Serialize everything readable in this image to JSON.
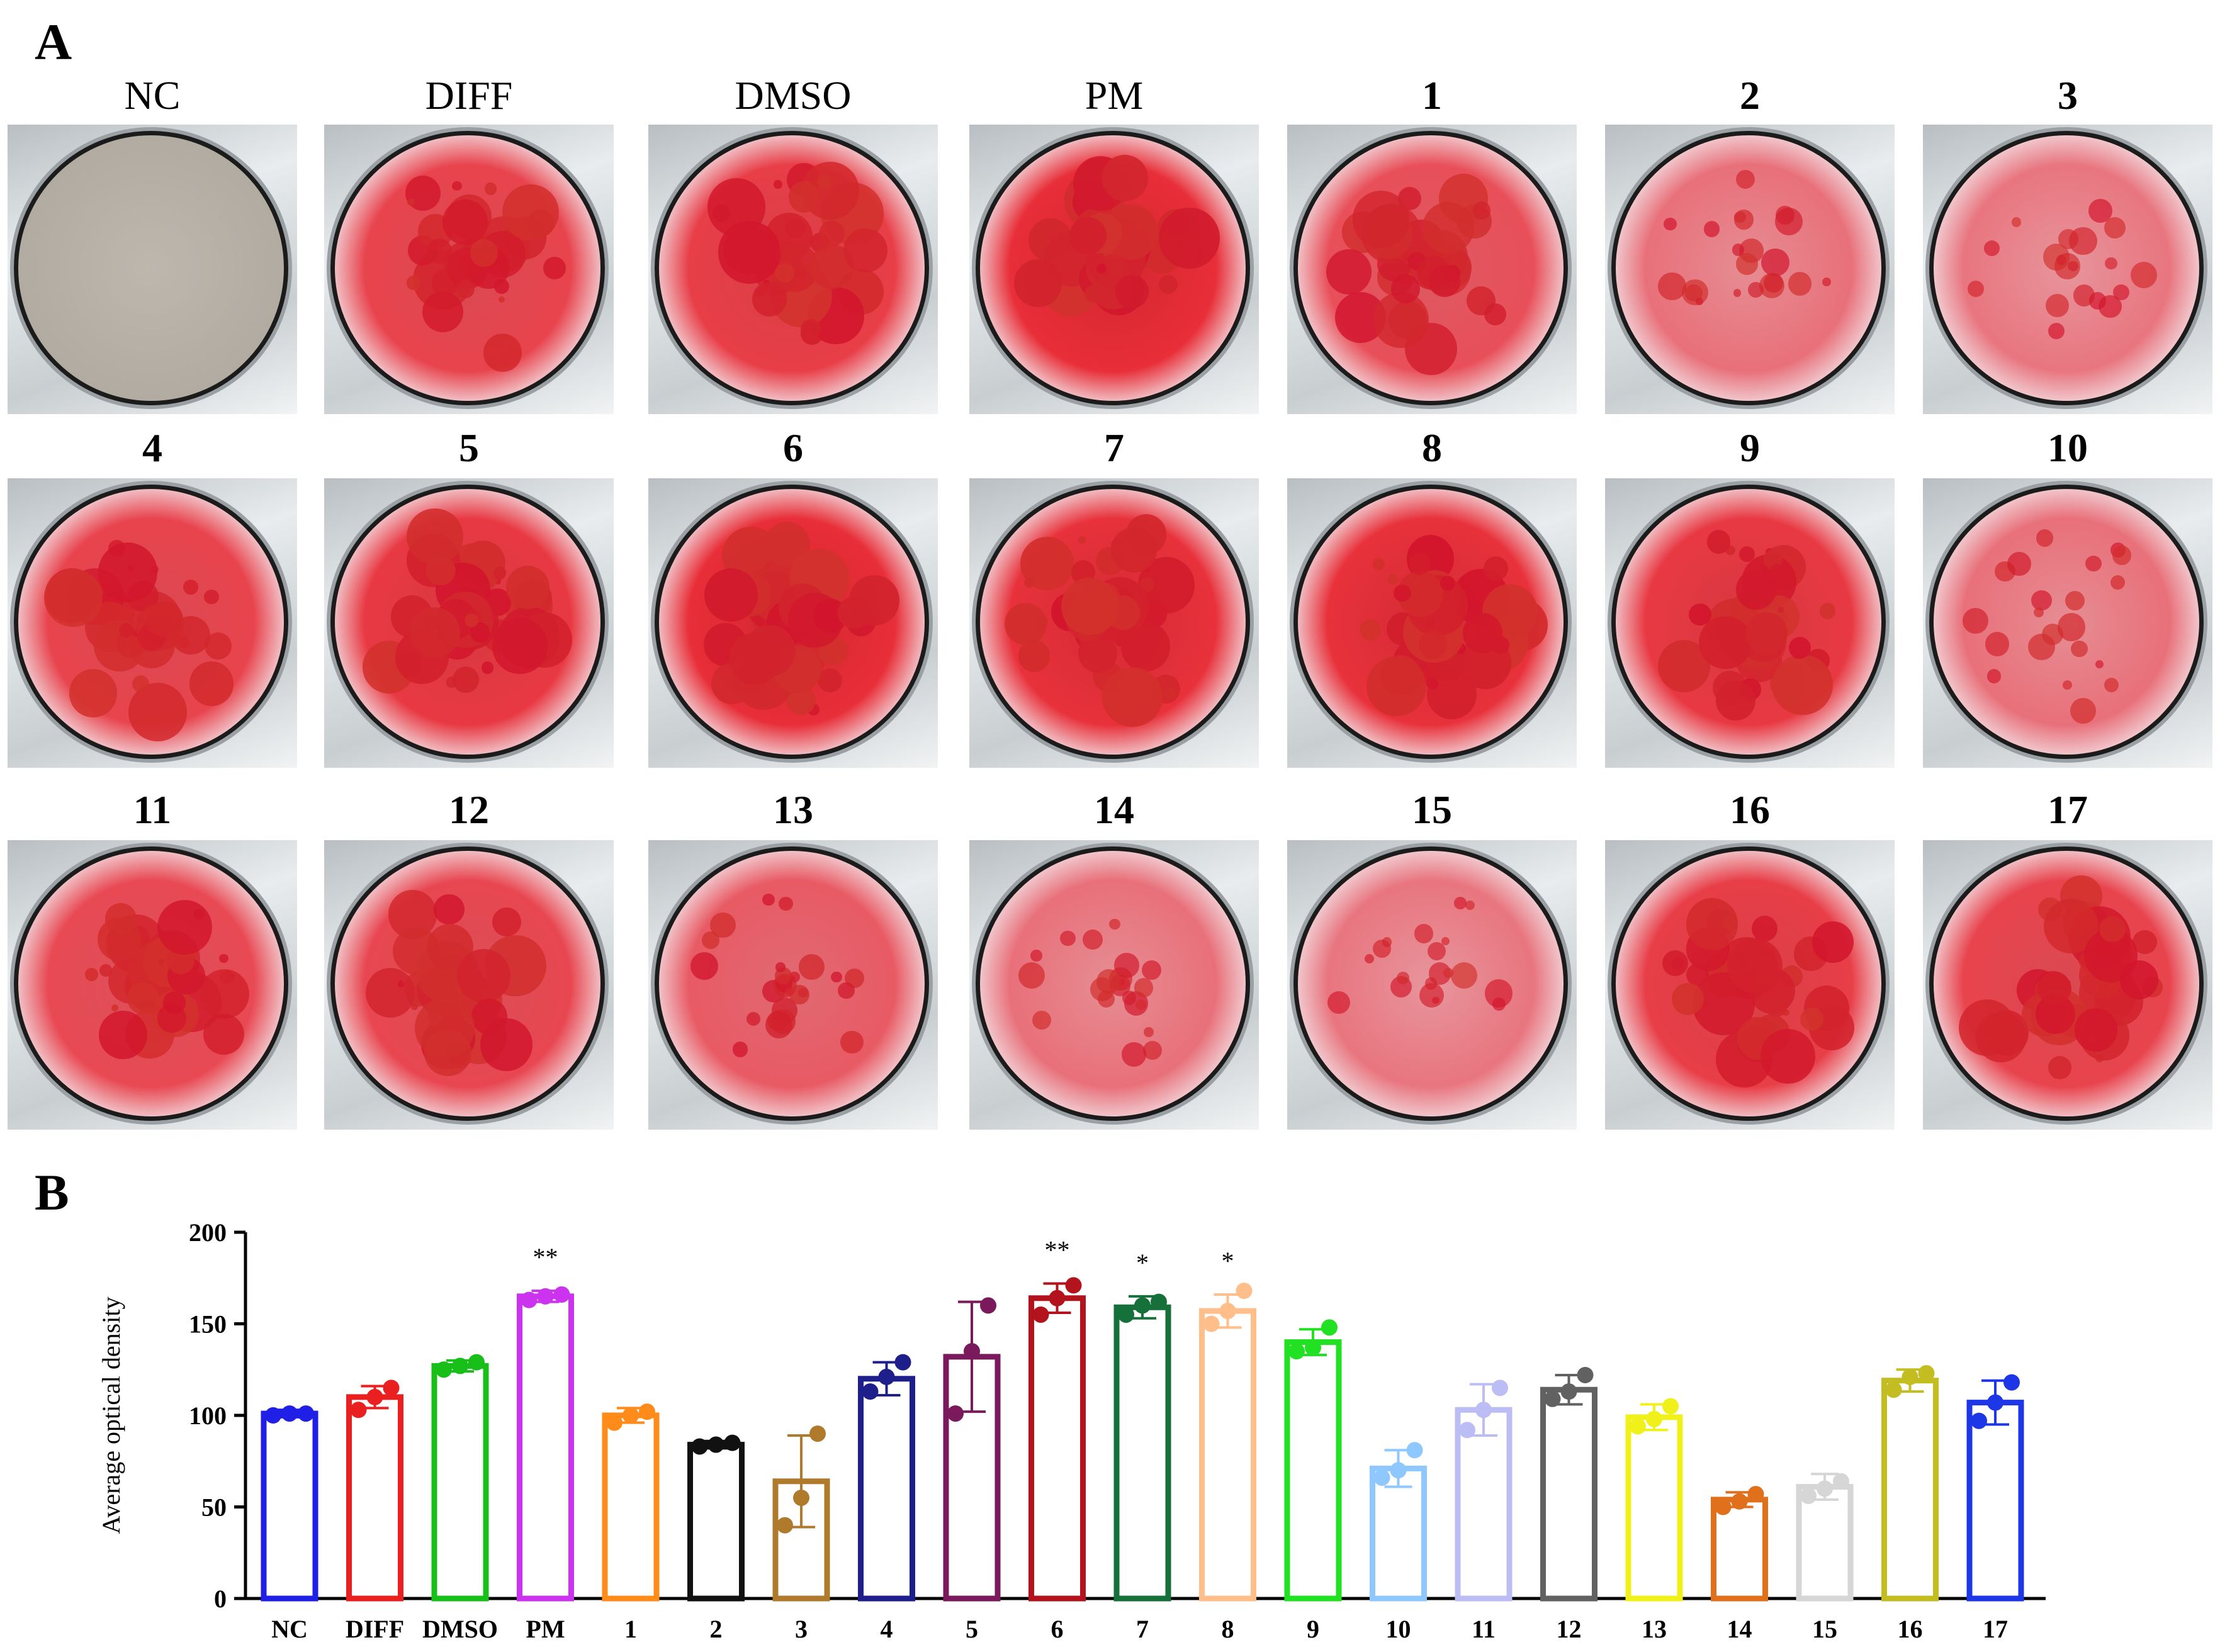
{
  "panels": {
    "a_label": "A",
    "b_label": "B"
  },
  "wells": [
    {
      "label": "NC",
      "bold": false,
      "stain": 0.0
    },
    {
      "label": "DIFF",
      "bold": false,
      "stain": 0.75
    },
    {
      "label": "DMSO",
      "bold": false,
      "stain": 0.8
    },
    {
      "label": "PM",
      "bold": false,
      "stain": 0.95
    },
    {
      "label": "1",
      "bold": true,
      "stain": 0.65
    },
    {
      "label": "2",
      "bold": true,
      "stain": 0.35
    },
    {
      "label": "3",
      "bold": true,
      "stain": 0.3
    },
    {
      "label": "4",
      "bold": true,
      "stain": 0.75
    },
    {
      "label": "5",
      "bold": true,
      "stain": 0.85
    },
    {
      "label": "6",
      "bold": true,
      "stain": 0.95
    },
    {
      "label": "7",
      "bold": true,
      "stain": 0.92
    },
    {
      "label": "8",
      "bold": true,
      "stain": 0.92
    },
    {
      "label": "9",
      "bold": true,
      "stain": 0.85
    },
    {
      "label": "10",
      "bold": true,
      "stain": 0.35
    },
    {
      "label": "11",
      "bold": true,
      "stain": 0.7
    },
    {
      "label": "12",
      "bold": true,
      "stain": 0.72
    },
    {
      "label": "13",
      "bold": true,
      "stain": 0.55
    },
    {
      "label": "14",
      "bold": true,
      "stain": 0.35
    },
    {
      "label": "15",
      "bold": true,
      "stain": 0.3
    },
    {
      "label": "16",
      "bold": true,
      "stain": 0.8
    },
    {
      "label": "17",
      "bold": true,
      "stain": 0.75
    }
  ],
  "chart_data": {
    "type": "bar",
    "title": "",
    "xlabel": "",
    "ylabel": "Average optical density",
    "ylim": [
      0,
      200
    ],
    "yticks": [
      0,
      50,
      100,
      150,
      200
    ],
    "categories": [
      "NC",
      "DIFF",
      "DMSO",
      "PM",
      "1",
      "2",
      "3",
      "4",
      "5",
      "6",
      "7",
      "8",
      "9",
      "10",
      "11",
      "12",
      "13",
      "14",
      "15",
      "16",
      "17"
    ],
    "values": [
      101,
      110,
      127,
      165,
      100,
      84,
      64,
      120,
      132,
      164,
      159,
      157,
      140,
      71,
      103,
      114,
      99,
      54,
      61,
      119,
      107
    ],
    "errors": [
      2,
      6,
      3,
      3,
      4,
      2,
      25,
      9,
      30,
      8,
      6,
      9,
      7,
      10,
      14,
      8,
      7,
      4,
      7,
      6,
      12
    ],
    "points": [
      [
        100,
        101,
        101
      ],
      [
        103,
        110,
        115
      ],
      [
        125,
        127,
        129
      ],
      [
        163,
        165,
        166
      ],
      [
        96,
        100,
        102
      ],
      [
        83,
        84,
        85
      ],
      [
        40,
        55,
        90
      ],
      [
        113,
        121,
        129
      ],
      [
        101,
        135,
        160
      ],
      [
        155,
        164,
        171
      ],
      [
        155,
        160,
        162
      ],
      [
        150,
        157,
        168
      ],
      [
        135,
        137,
        148
      ],
      [
        66,
        70,
        81
      ],
      [
        92,
        103,
        115
      ],
      [
        109,
        113,
        122
      ],
      [
        94,
        98,
        105
      ],
      [
        50,
        53,
        57
      ],
      [
        56,
        60,
        64
      ],
      [
        114,
        121,
        123
      ],
      [
        97,
        107,
        118
      ]
    ],
    "colors": [
      "#1f1fe6",
      "#ea2020",
      "#19bf19",
      "#cc33ee",
      "#ff8c1a",
      "#111111",
      "#b07a2c",
      "#1f1f8c",
      "#7a1a5c",
      "#b3131c",
      "#15703a",
      "#ffbe8a",
      "#22e022",
      "#8fc8ff",
      "#bdbdf5",
      "#616161",
      "#f0f01a",
      "#e0701c",
      "#d6d6d6",
      "#c4bd21",
      "#1d37e6"
    ],
    "annotations": [
      {
        "category": "PM",
        "text": "**"
      },
      {
        "category": "6",
        "text": "**"
      },
      {
        "category": "7",
        "text": "*"
      },
      {
        "category": "8",
        "text": "*"
      }
    ]
  }
}
